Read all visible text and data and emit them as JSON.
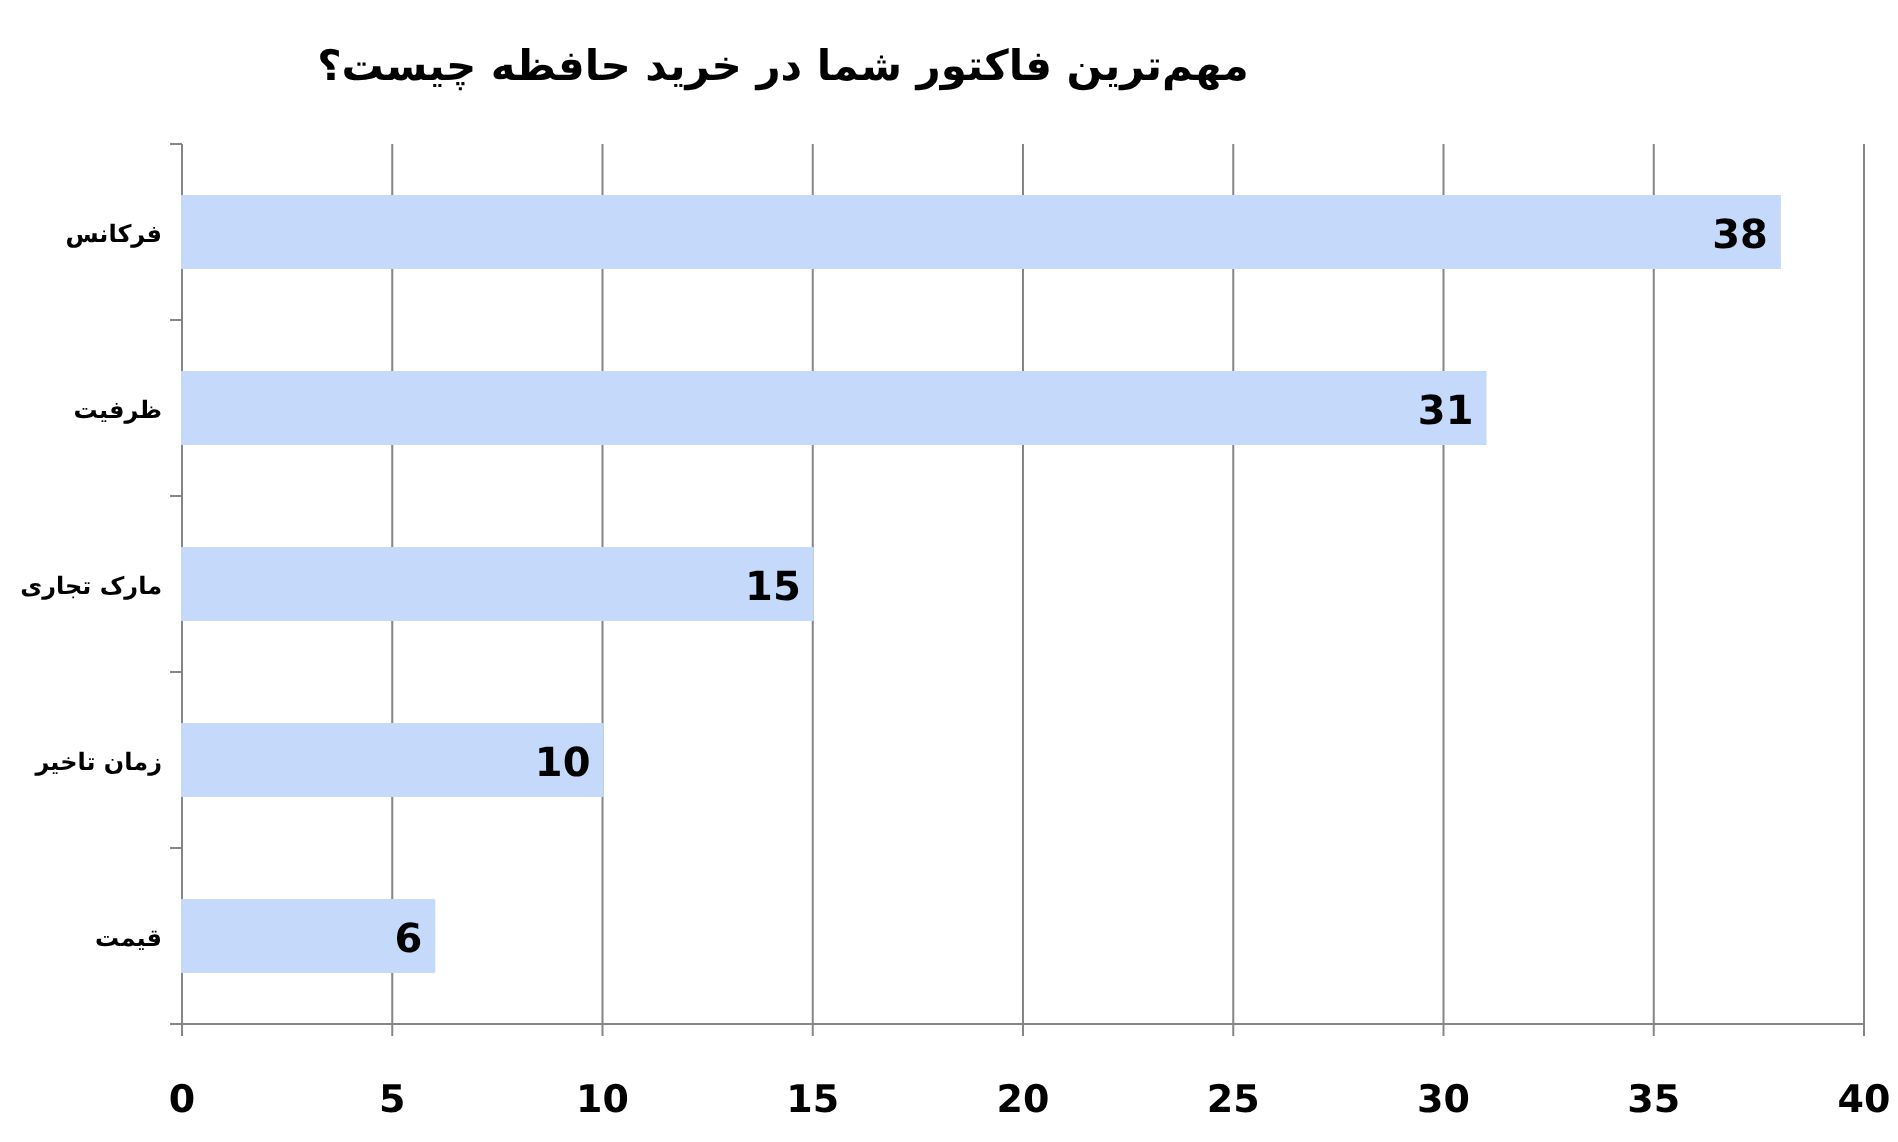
{
  "chart_data": {
    "type": "bar",
    "orientation": "horizontal",
    "title": "مهم‌ترین فاکتور شما در خرید حافظه چیست؟",
    "categories": [
      "فرکانس",
      "ظرفیت",
      "مارک تجاری",
      "زمان تاخیر",
      "قیمت"
    ],
    "values": [
      38,
      31,
      15,
      10,
      6
    ],
    "color": "#c5d9fb",
    "xlim": [
      0,
      40
    ],
    "xticks": [
      0,
      5,
      10,
      15,
      20,
      25,
      30,
      35,
      40
    ],
    "grid": "x",
    "data_labels": true
  }
}
